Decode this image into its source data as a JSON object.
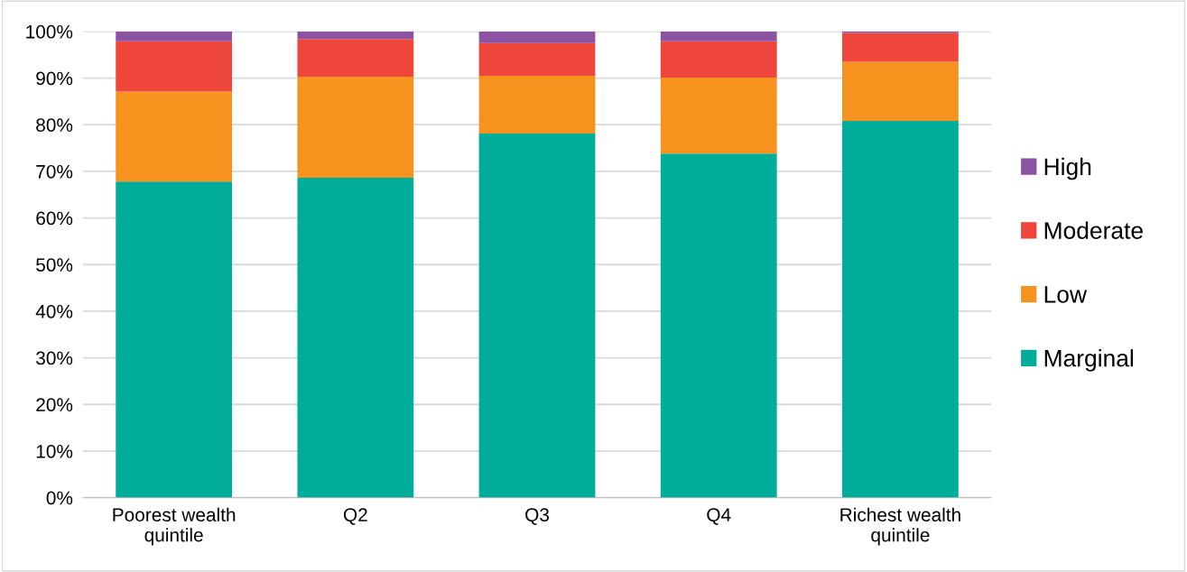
{
  "chart_data": {
    "type": "bar",
    "stacked": true,
    "categories": [
      "Poorest wealth\nquintile",
      "Q2",
      "Q3",
      "Q4",
      "Richest wealth\nquintile"
    ],
    "series": [
      {
        "name": "Marginal",
        "color": "#00ad9a",
        "values": [
          67.8,
          68.6,
          78.1,
          73.8,
          80.8
        ]
      },
      {
        "name": "Low",
        "color": "#f6921e",
        "values": [
          19.3,
          21.7,
          12.4,
          16.3,
          12.7
        ]
      },
      {
        "name": "Moderate",
        "color": "#ef463c",
        "values": [
          10.8,
          8.1,
          7.0,
          7.8,
          6.2
        ]
      },
      {
        "name": "High",
        "color": "#8b53a1",
        "values": [
          2.1,
          1.6,
          2.5,
          2.1,
          0.3
        ]
      }
    ],
    "ylim": [
      0,
      100
    ],
    "yticks": [
      {
        "value": 0,
        "label": "0%"
      },
      {
        "value": 10,
        "label": "10%"
      },
      {
        "value": 20,
        "label": "20%"
      },
      {
        "value": 30,
        "label": "30%"
      },
      {
        "value": 40,
        "label": "40%"
      },
      {
        "value": 50,
        "label": "50%"
      },
      {
        "value": 60,
        "label": "60%"
      },
      {
        "value": 70,
        "label": "70%"
      },
      {
        "value": 80,
        "label": "80%"
      },
      {
        "value": 90,
        "label": "90%"
      },
      {
        "value": 100,
        "label": "100%"
      }
    ],
    "grid": "y",
    "legend": "right"
  }
}
